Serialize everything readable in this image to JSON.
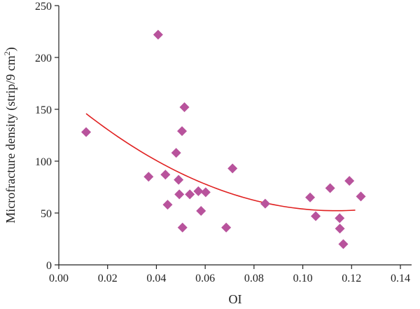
{
  "chart_data": {
    "type": "scatter",
    "xlabel": "OI",
    "ylabel_main": "Microfracture density (strip/9 cm",
    "ylabel_sup": "2",
    "ylabel_tail": ")",
    "xlim": [
      0.0,
      0.14
    ],
    "ylim": [
      0,
      250
    ],
    "x_ticks": [
      0.0,
      0.02,
      0.04,
      0.06,
      0.08,
      0.1,
      0.12,
      0.14
    ],
    "x_tick_labels": [
      "0.00",
      "0.02",
      "0.04",
      "0.06",
      "0.08",
      "0.10",
      "0.12",
      "0.14"
    ],
    "y_ticks": [
      0,
      50,
      100,
      150,
      200,
      250
    ],
    "y_tick_labels": [
      "0",
      "50",
      "100",
      "150",
      "200",
      "250"
    ],
    "grid": false,
    "marker_color": "#b8539c",
    "trend_color": "#e02020",
    "points": [
      {
        "x": 0.0112,
        "y": 128
      },
      {
        "x": 0.0368,
        "y": 85
      },
      {
        "x": 0.0407,
        "y": 222
      },
      {
        "x": 0.0437,
        "y": 87
      },
      {
        "x": 0.0446,
        "y": 58
      },
      {
        "x": 0.0481,
        "y": 108
      },
      {
        "x": 0.0491,
        "y": 82
      },
      {
        "x": 0.0494,
        "y": 68
      },
      {
        "x": 0.0505,
        "y": 129
      },
      {
        "x": 0.0507,
        "y": 36
      },
      {
        "x": 0.0515,
        "y": 152
      },
      {
        "x": 0.0537,
        "y": 68
      },
      {
        "x": 0.0572,
        "y": 71
      },
      {
        "x": 0.0583,
        "y": 52
      },
      {
        "x": 0.0602,
        "y": 70
      },
      {
        "x": 0.0686,
        "y": 36
      },
      {
        "x": 0.0712,
        "y": 93
      },
      {
        "x": 0.0846,
        "y": 59
      },
      {
        "x": 0.103,
        "y": 65
      },
      {
        "x": 0.1053,
        "y": 47
      },
      {
        "x": 0.1112,
        "y": 74
      },
      {
        "x": 0.1151,
        "y": 45
      },
      {
        "x": 0.1152,
        "y": 35
      },
      {
        "x": 0.1166,
        "y": 20
      },
      {
        "x": 0.1191,
        "y": 81
      },
      {
        "x": 0.1238,
        "y": 66
      }
    ],
    "trend": {
      "kind": "quadratic",
      "x_range": [
        0.0112,
        0.1215
      ],
      "points": [
        {
          "x": 0.0112,
          "y": 146
        },
        {
          "x": 0.02,
          "y": 130
        },
        {
          "x": 0.04,
          "y": 101
        },
        {
          "x": 0.06,
          "y": 78
        },
        {
          "x": 0.08,
          "y": 62
        },
        {
          "x": 0.1,
          "y": 54
        },
        {
          "x": 0.11,
          "y": 52
        },
        {
          "x": 0.1215,
          "y": 53
        }
      ]
    }
  }
}
